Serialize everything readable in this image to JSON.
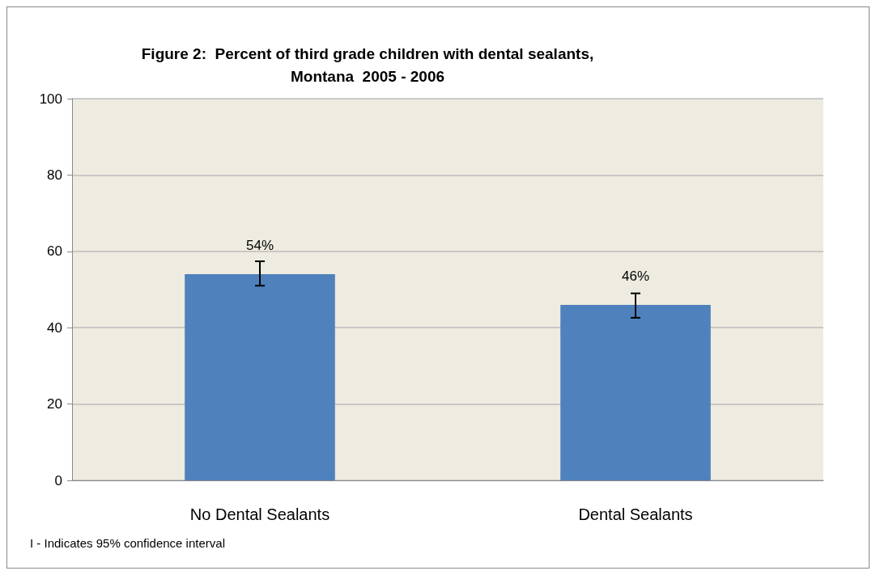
{
  "chart_data": {
    "type": "bar",
    "title": "Figure 2:  Percent of third grade children with dental sealants,\nMontana  2005 - 2006",
    "categories": [
      "No Dental Sealants",
      "Dental Sealants"
    ],
    "values": [
      54,
      46
    ],
    "value_labels": [
      "54%",
      "46%"
    ],
    "errors": [
      [
        51,
        57.4
      ],
      [
        42.6,
        49
      ]
    ],
    "color": "#4f81bd",
    "ylim": [
      0,
      100
    ],
    "yticks": [
      0,
      20,
      40,
      60,
      80,
      100
    ],
    "grid": "y",
    "annotations": [
      "I - Indicates 95% confidence interval"
    ]
  }
}
